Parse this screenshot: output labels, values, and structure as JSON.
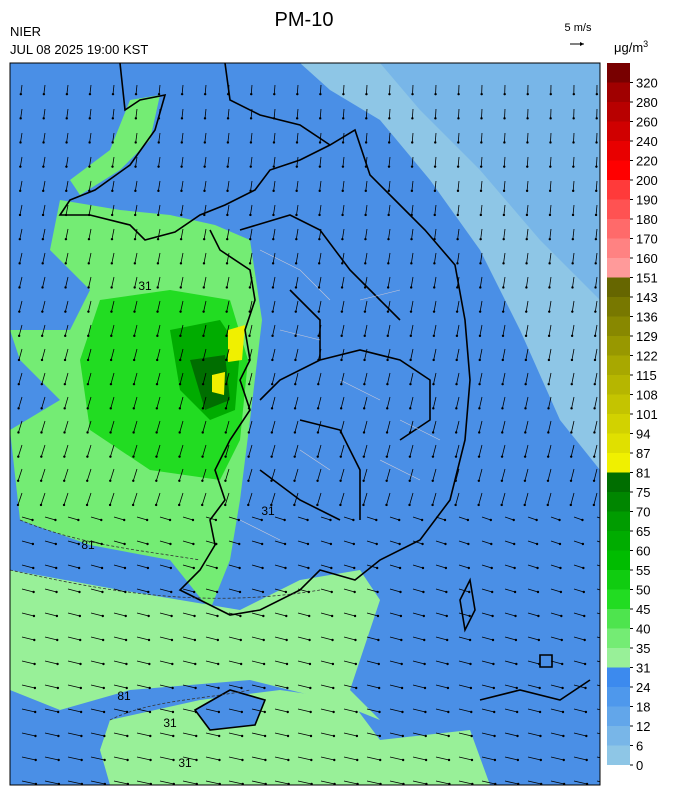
{
  "header": {
    "title": "PM-10",
    "agency": "NIER",
    "datetime": "JUL 08 2025 19:00 KST",
    "wind_scale": "5 m/s"
  },
  "colorbar": {
    "unit": "μg/m",
    "unit_exponent": "3",
    "ticks": [
      0,
      6,
      12,
      18,
      24,
      31,
      35,
      40,
      45,
      50,
      55,
      60,
      65,
      70,
      75,
      81,
      87,
      94,
      101,
      108,
      115,
      122,
      129,
      136,
      143,
      151,
      160,
      170,
      180,
      190,
      200,
      220,
      240,
      260,
      280,
      320
    ],
    "colors": [
      "#8ec6e6",
      "#78b6e8",
      "#62a6ea",
      "#4e98ec",
      "#3c8aee",
      "#98f098",
      "#74ec74",
      "#4ee44e",
      "#22dc22",
      "#10cc10",
      "#00bc00",
      "#00ac00",
      "#009c00",
      "#008600",
      "#006e00",
      "#f0f000",
      "#e0e000",
      "#d2d200",
      "#c4c400",
      "#b6b600",
      "#a8a800",
      "#989800",
      "#888800",
      "#787800",
      "#666600",
      "#ff9a9a",
      "#ff8282",
      "#ff6a6a",
      "#ff5252",
      "#ff3a3a",
      "#ff0000",
      "#e80000",
      "#d00000",
      "#b80000",
      "#a00000",
      "#780000"
    ]
  },
  "map": {
    "contour_labels": [
      31,
      81,
      31,
      81,
      31,
      31
    ]
  }
}
